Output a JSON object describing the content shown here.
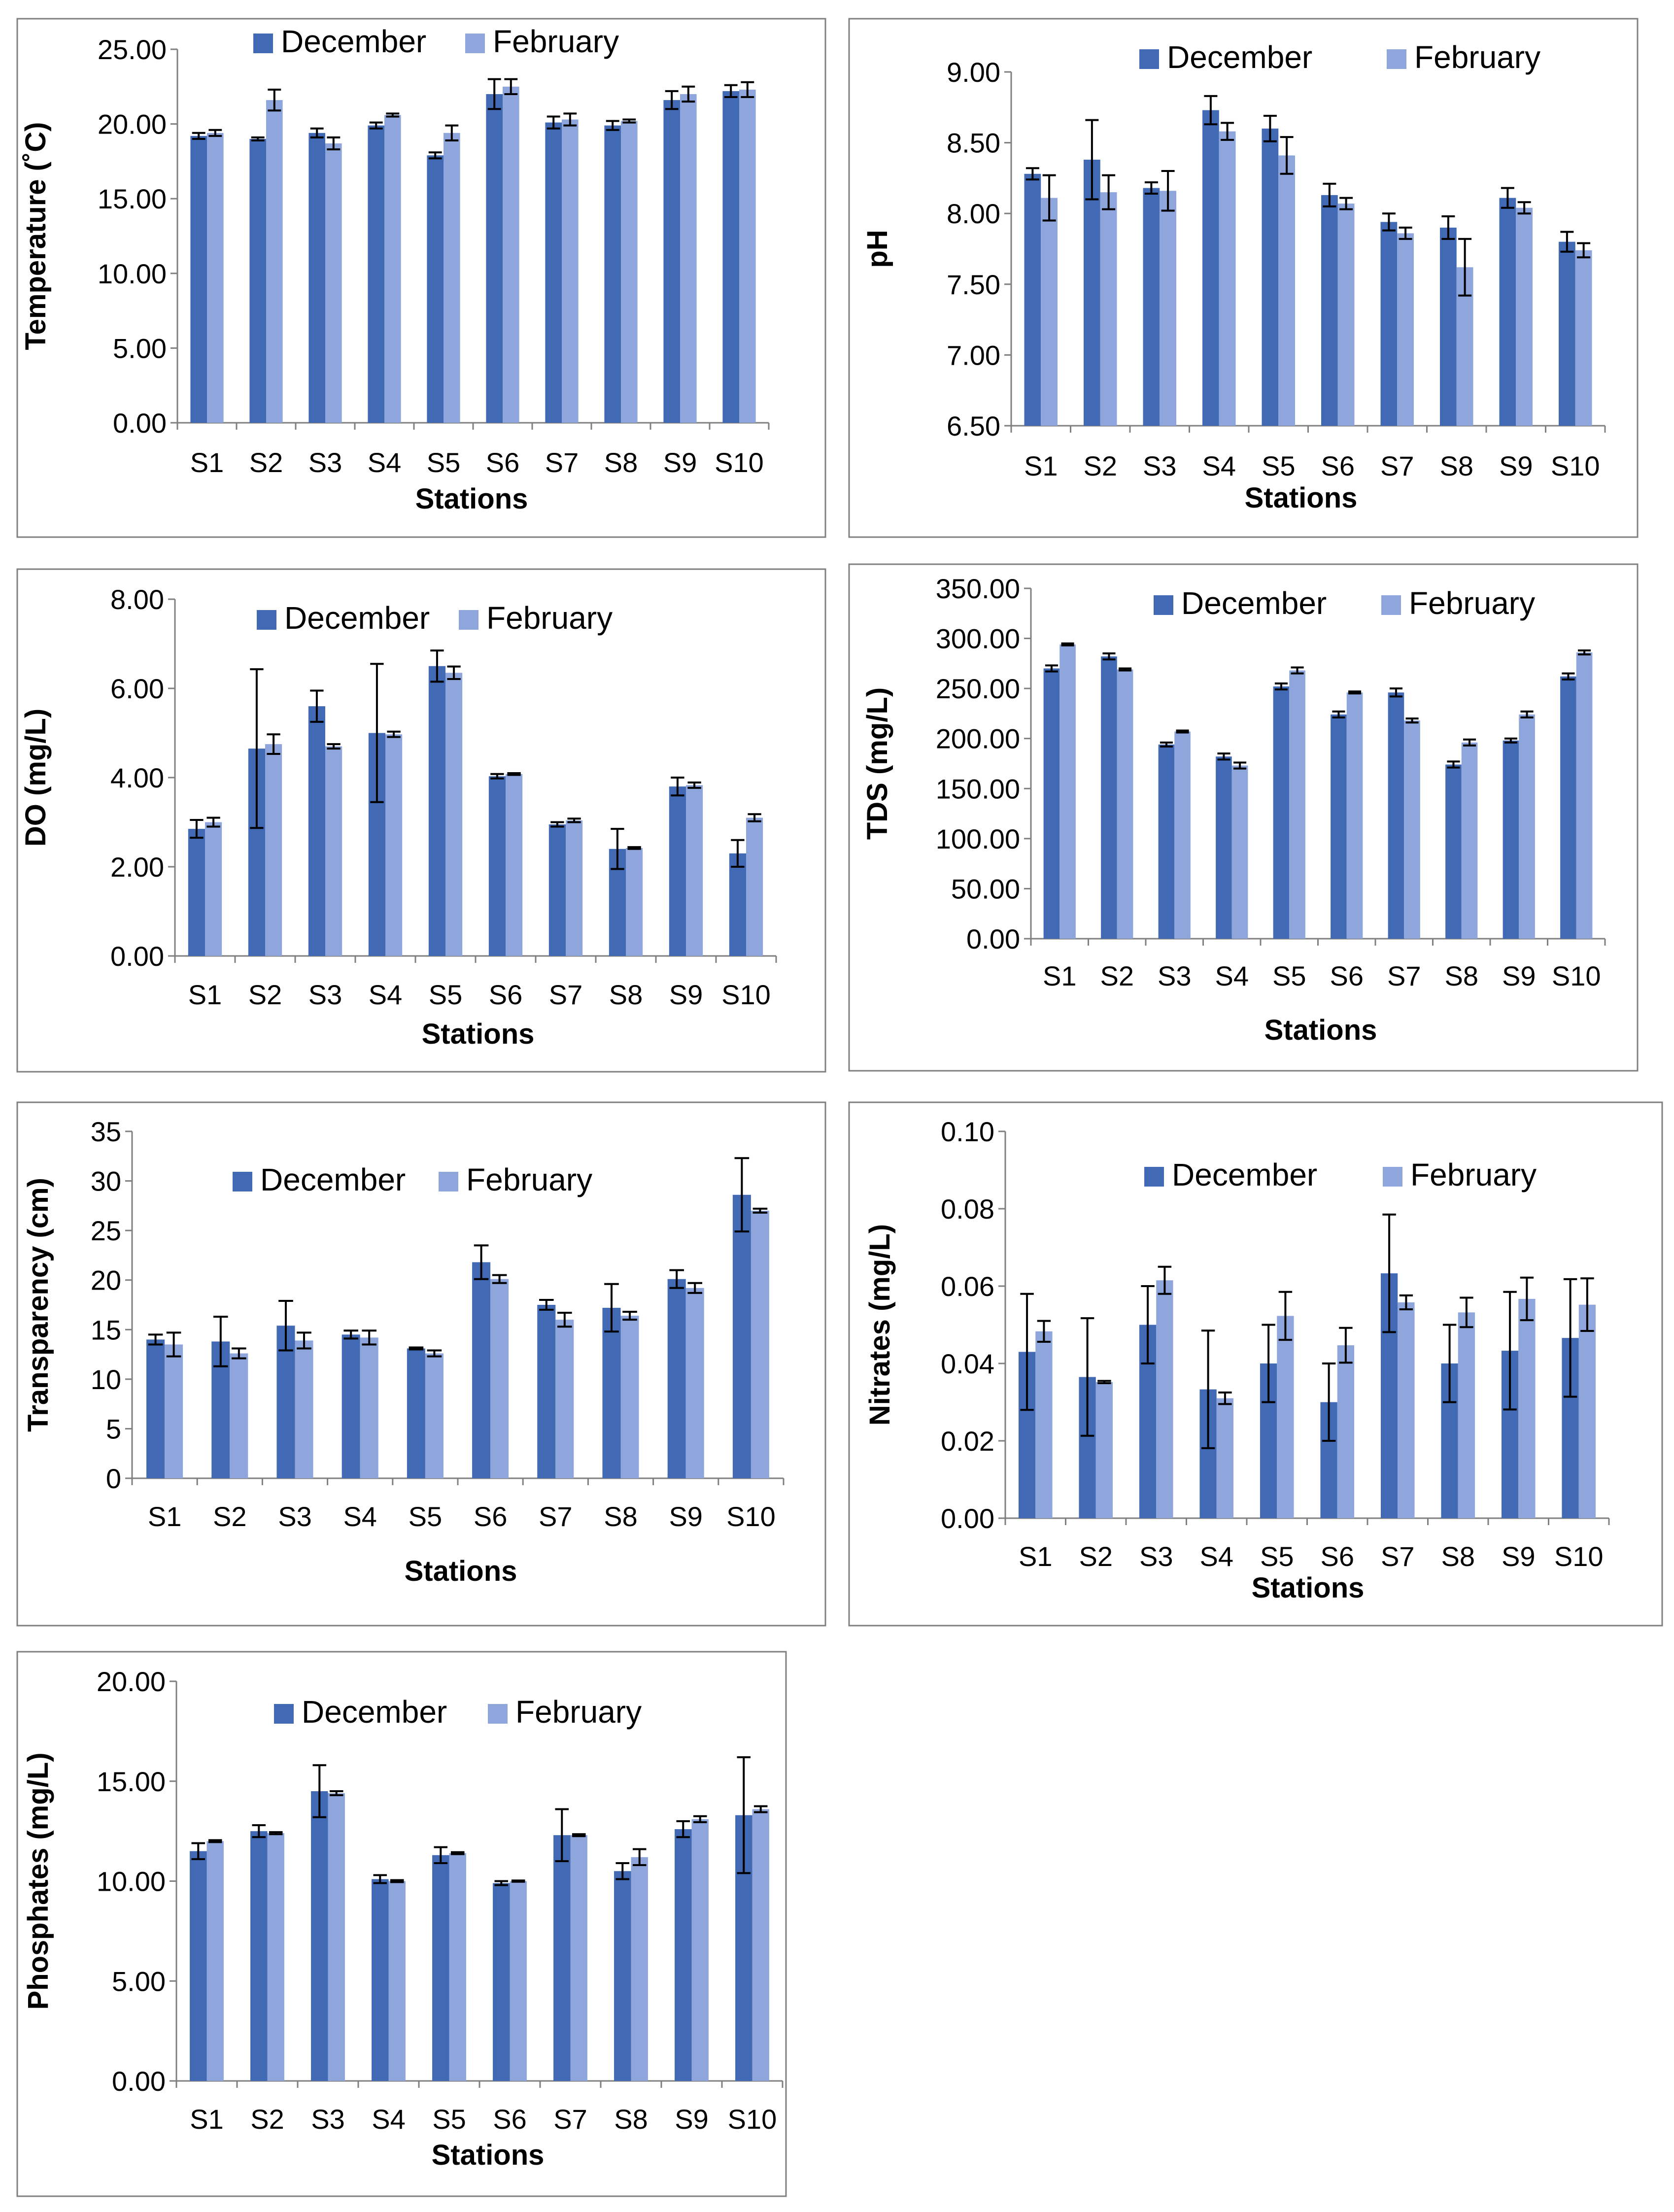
{
  "colors": {
    "december": "#4169b4",
    "february": "#8ea6dc"
  },
  "chart_data": [
    {
      "type": "bar",
      "title": "",
      "xlabel": "Stations",
      "ylabel": "Temperature (˚C)",
      "categories": [
        "S1",
        "S2",
        "S3",
        "S4",
        "S5",
        "S6",
        "S7",
        "S8",
        "S9",
        "S10"
      ],
      "ylim": [
        0,
        25
      ],
      "yticks": [
        "0.00",
        "5.00",
        "10.00",
        "15.00",
        "20.00",
        "25.00"
      ],
      "legend": [
        "December",
        "February"
      ],
      "legend_position": "top",
      "series": [
        {
          "name": "December",
          "values": [
            19.2,
            19.0,
            19.4,
            19.9,
            17.9,
            22.0,
            20.1,
            19.9,
            21.6,
            22.2
          ],
          "errors": [
            0.2,
            0.1,
            0.3,
            0.2,
            0.2,
            1.0,
            0.4,
            0.3,
            0.6,
            0.4
          ]
        },
        {
          "name": "February",
          "values": [
            19.4,
            21.6,
            18.7,
            20.6,
            19.4,
            22.5,
            20.3,
            20.2,
            22.0,
            22.3
          ],
          "errors": [
            0.2,
            0.7,
            0.4,
            0.1,
            0.5,
            0.5,
            0.4,
            0.1,
            0.5,
            0.5
          ]
        }
      ]
    },
    {
      "type": "bar",
      "title": "",
      "xlabel": "Stations",
      "ylabel": "pH",
      "categories": [
        "S1",
        "S2",
        "S3",
        "S4",
        "S5",
        "S6",
        "S7",
        "S8",
        "S9",
        "S10"
      ],
      "ylim": [
        6.5,
        9
      ],
      "yticks": [
        "6.50",
        "7.00",
        "7.50",
        "8.00",
        "8.50",
        "9.00"
      ],
      "legend": [
        "December",
        "February"
      ],
      "legend_position": "top-right",
      "series": [
        {
          "name": "December",
          "values": [
            8.28,
            8.38,
            8.18,
            8.73,
            8.6,
            8.13,
            7.94,
            7.9,
            8.11,
            7.8
          ],
          "errors": [
            0.04,
            0.28,
            0.04,
            0.1,
            0.09,
            0.08,
            0.06,
            0.08,
            0.07,
            0.07
          ]
        },
        {
          "name": "February",
          "values": [
            8.11,
            8.15,
            8.16,
            8.58,
            8.41,
            8.07,
            7.86,
            7.62,
            8.04,
            7.74
          ],
          "errors": [
            0.16,
            0.12,
            0.14,
            0.06,
            0.13,
            0.04,
            0.04,
            0.2,
            0.04,
            0.05
          ]
        }
      ]
    },
    {
      "type": "bar",
      "title": "",
      "xlabel": "Stations",
      "ylabel": "DO (mg/L)",
      "categories": [
        "S1",
        "S2",
        "S3",
        "S4",
        "S5",
        "S6",
        "S7",
        "S8",
        "S9",
        "S10"
      ],
      "ylim": [
        0,
        8
      ],
      "yticks": [
        "0.00",
        "2.00",
        "4.00",
        "6.00",
        "8.00"
      ],
      "legend": [
        "December",
        "February"
      ],
      "legend_position": "top",
      "series": [
        {
          "name": "December",
          "values": [
            2.85,
            4.65,
            5.6,
            5.0,
            6.5,
            4.03,
            2.95,
            2.4,
            3.8,
            2.3
          ],
          "errors": [
            0.2,
            1.78,
            0.35,
            1.55,
            0.35,
            0.05,
            0.05,
            0.45,
            0.2,
            0.3
          ]
        },
        {
          "name": "February",
          "values": [
            3.0,
            4.75,
            4.7,
            4.97,
            6.35,
            4.08,
            3.04,
            2.42,
            3.83,
            3.1
          ],
          "errors": [
            0.1,
            0.22,
            0.05,
            0.06,
            0.14,
            0.02,
            0.04,
            0.02,
            0.06,
            0.08
          ]
        }
      ]
    },
    {
      "type": "bar",
      "title": "",
      "xlabel": "Stations",
      "ylabel": "TDS (mg/L)",
      "categories": [
        "S1",
        "S2",
        "S3",
        "S4",
        "S5",
        "S6",
        "S7",
        "S8",
        "S9",
        "S10"
      ],
      "ylim": [
        0,
        350
      ],
      "yticks": [
        "0.00",
        "50.00",
        "100.00",
        "150.00",
        "200.00",
        "250.00",
        "300.00",
        "350.00"
      ],
      "legend": [
        "December",
        "February"
      ],
      "legend_position": "top-right",
      "series": [
        {
          "name": "December",
          "values": [
            270,
            282,
            194,
            182,
            252,
            224,
            246,
            174,
            198,
            262
          ],
          "errors": [
            3,
            3,
            2,
            3,
            3,
            3,
            4,
            3,
            2,
            3
          ]
        },
        {
          "name": "February",
          "values": [
            294,
            269,
            207,
            173,
            268,
            246,
            218,
            196,
            224,
            286
          ],
          "errors": [
            1,
            1,
            1,
            3,
            3,
            1,
            2,
            3,
            3,
            2
          ]
        }
      ]
    },
    {
      "type": "bar",
      "title": "",
      "xlabel": "Stations",
      "ylabel": "Transparency (cm)",
      "categories": [
        "S1",
        "S2",
        "S3",
        "S4",
        "S5",
        "S6",
        "S7",
        "S8",
        "S9",
        "S10"
      ],
      "ylim": [
        0,
        35
      ],
      "yticks": [
        "0",
        "5",
        "10",
        "15",
        "20",
        "25",
        "30",
        "35"
      ],
      "legend": [
        "December",
        "February"
      ],
      "legend_position": "top",
      "series": [
        {
          "name": "December",
          "values": [
            14.0,
            13.8,
            15.4,
            14.5,
            13.1,
            21.8,
            17.5,
            17.2,
            20.1,
            28.6
          ],
          "errors": [
            0.5,
            2.5,
            2.5,
            0.4,
            0.1,
            1.7,
            0.5,
            2.4,
            0.9,
            3.7
          ]
        },
        {
          "name": "February",
          "values": [
            13.5,
            12.6,
            13.9,
            14.2,
            12.6,
            20.1,
            16.0,
            16.4,
            19.2,
            27.0
          ],
          "errors": [
            1.2,
            0.5,
            0.8,
            0.7,
            0.3,
            0.4,
            0.7,
            0.4,
            0.5,
            0.2
          ]
        }
      ]
    },
    {
      "type": "bar",
      "title": "",
      "xlabel": "Stations",
      "ylabel": "Nitrates (mg/L)",
      "categories": [
        "S1",
        "S2",
        "S3",
        "S4",
        "S5",
        "S6",
        "S7",
        "S8",
        "S9",
        "S10"
      ],
      "ylim": [
        0,
        0.1
      ],
      "yticks": [
        "0.00",
        "0.02",
        "0.04",
        "0.06",
        "0.08",
        "0.10"
      ],
      "legend": [
        "December",
        "February"
      ],
      "legend_position": "top-right",
      "series": [
        {
          "name": "December",
          "values": [
            0.043,
            0.0365,
            0.05,
            0.0333,
            0.04,
            0.03,
            0.0633,
            0.04,
            0.0433,
            0.0466
          ],
          "errors": [
            0.015,
            0.0152,
            0.01,
            0.0152,
            0.01,
            0.01,
            0.0152,
            0.01,
            0.0152,
            0.0152
          ]
        },
        {
          "name": "February",
          "values": [
            0.0483,
            0.0352,
            0.0615,
            0.031,
            0.0523,
            0.0447,
            0.0558,
            0.0532,
            0.0567,
            0.0552
          ],
          "errors": [
            0.0027,
            0.0003,
            0.0035,
            0.0015,
            0.0062,
            0.0045,
            0.0018,
            0.0038,
            0.0055,
            0.0068
          ]
        }
      ]
    },
    {
      "type": "bar",
      "title": "",
      "xlabel": "Stations",
      "ylabel": "Phosphates (mg/L)",
      "categories": [
        "S1",
        "S2",
        "S3",
        "S4",
        "S5",
        "S6",
        "S7",
        "S8",
        "S9",
        "S10"
      ],
      "ylim": [
        0,
        20
      ],
      "yticks": [
        "0.00",
        "5.00",
        "10.00",
        "15.00",
        "20.00"
      ],
      "legend": [
        "December",
        "February"
      ],
      "legend_position": "top",
      "series": [
        {
          "name": "December",
          "values": [
            11.5,
            12.5,
            14.5,
            10.1,
            11.3,
            9.9,
            12.3,
            10.5,
            12.6,
            13.3
          ],
          "errors": [
            0.4,
            0.3,
            1.3,
            0.2,
            0.4,
            0.1,
            1.3,
            0.4,
            0.4,
            2.9
          ]
        },
        {
          "name": "February",
          "values": [
            12.0,
            12.4,
            14.4,
            10.0,
            11.4,
            10.0,
            12.3,
            11.2,
            13.1,
            13.6
          ],
          "errors": [
            0.05,
            0.05,
            0.1,
            0.05,
            0.05,
            0.03,
            0.05,
            0.4,
            0.15,
            0.15
          ]
        }
      ]
    }
  ]
}
